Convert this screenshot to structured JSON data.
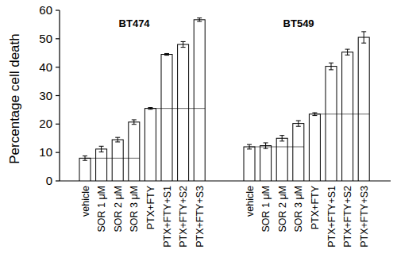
{
  "chart_data": {
    "type": "bar",
    "y_label": "Percentage cell death",
    "categories": [
      "vehicle",
      "SOR 1 μM",
      "SOR 2 μM",
      "SOR 3 μM",
      "PTX+FTY",
      "PTX+FTY+S1",
      "PTX+FTY+S2",
      "PTX+FTY+S3"
    ],
    "series": [
      {
        "name": "BT474",
        "color": "#ffffff",
        "values": [
          8.0,
          11.2,
          14.5,
          20.7,
          25.5,
          44.5,
          48.0,
          56.7
        ],
        "errors": [
          0.8,
          1.0,
          0.8,
          0.8,
          0.3,
          0.3,
          1.0,
          0.6
        ]
      },
      {
        "name": "BT549",
        "color": "#ffffff",
        "values": [
          12.0,
          12.4,
          15.0,
          20.2,
          23.5,
          40.3,
          45.3,
          50.5
        ],
        "errors": [
          0.8,
          1.0,
          1.0,
          1.0,
          0.5,
          1.2,
          1.0,
          2.0
        ]
      }
    ],
    "ylim": [
      0,
      60
    ],
    "yticks": [
      0,
      10,
      20,
      30,
      40,
      50,
      60
    ],
    "grid": false
  }
}
